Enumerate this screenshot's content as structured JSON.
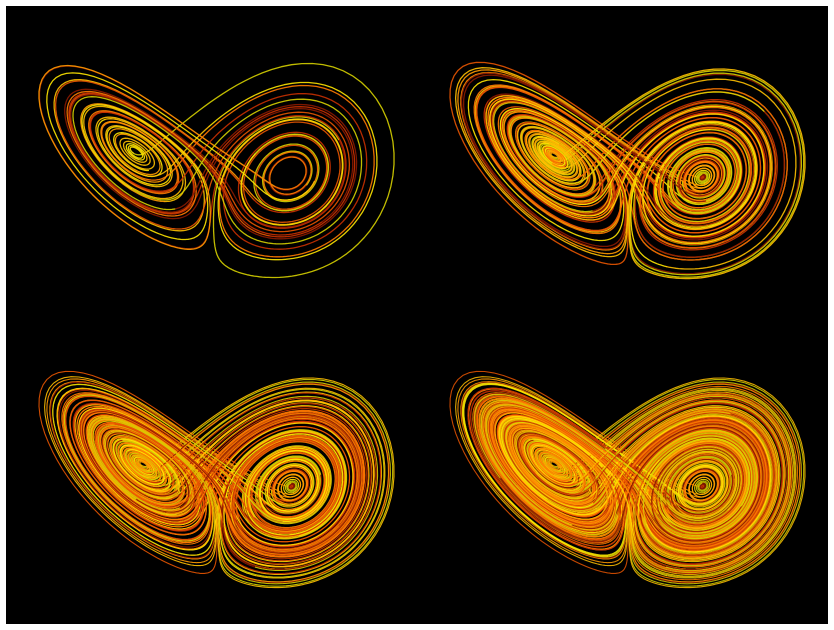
{
  "background_color": "#000000",
  "frame_color": "#ffffff",
  "stroke_palette": [
    "#ffe600",
    "#ffc000",
    "#ff9a00",
    "#ff7a00",
    "#e85500",
    "#c83000",
    "#8a1a00",
    "#d6d000"
  ],
  "panels": [
    {
      "name": "lorenz-attractor-stage-1",
      "density": 1
    },
    {
      "name": "lorenz-attractor-stage-2",
      "density": 2
    },
    {
      "name": "lorenz-attractor-stage-3",
      "density": 3
    },
    {
      "name": "lorenz-attractor-stage-4",
      "density": 4
    }
  ]
}
